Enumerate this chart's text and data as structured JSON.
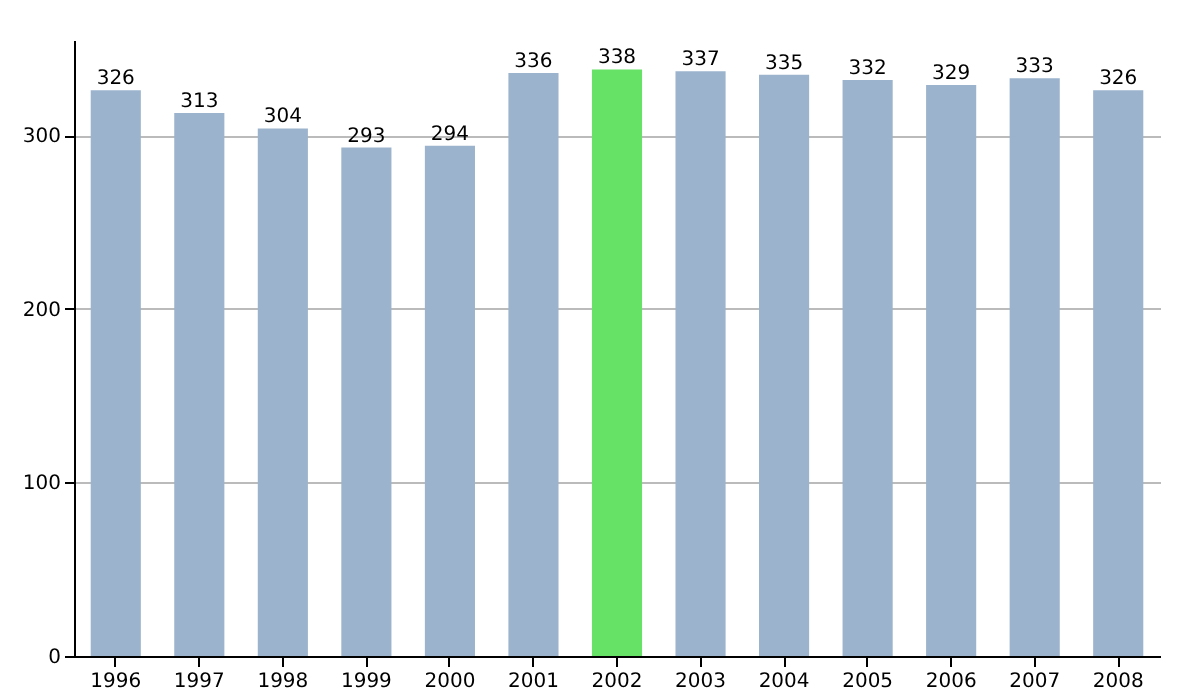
{
  "chart_data": {
    "type": "bar",
    "categories": [
      "1996",
      "1997",
      "1998",
      "1999",
      "2000",
      "2001",
      "2002",
      "2003",
      "2004",
      "2005",
      "2006",
      "2007",
      "2008"
    ],
    "values": [
      326,
      313,
      304,
      293,
      294,
      336,
      338,
      337,
      335,
      332,
      329,
      333,
      326
    ],
    "colors": [
      "#9bb3cc",
      "#9bb3cc",
      "#9bb3cc",
      "#9bb3cc",
      "#9bb3cc",
      "#9bb3cc",
      "#66e266",
      "#9bb3cc",
      "#9bb3cc",
      "#9bb3cc",
      "#9bb3cc",
      "#9bb3cc",
      "#9bb3cc"
    ],
    "ylim": [
      0,
      355
    ],
    "yticks": [
      0,
      100,
      200,
      300
    ],
    "grid": "y",
    "data_labels": true
  }
}
